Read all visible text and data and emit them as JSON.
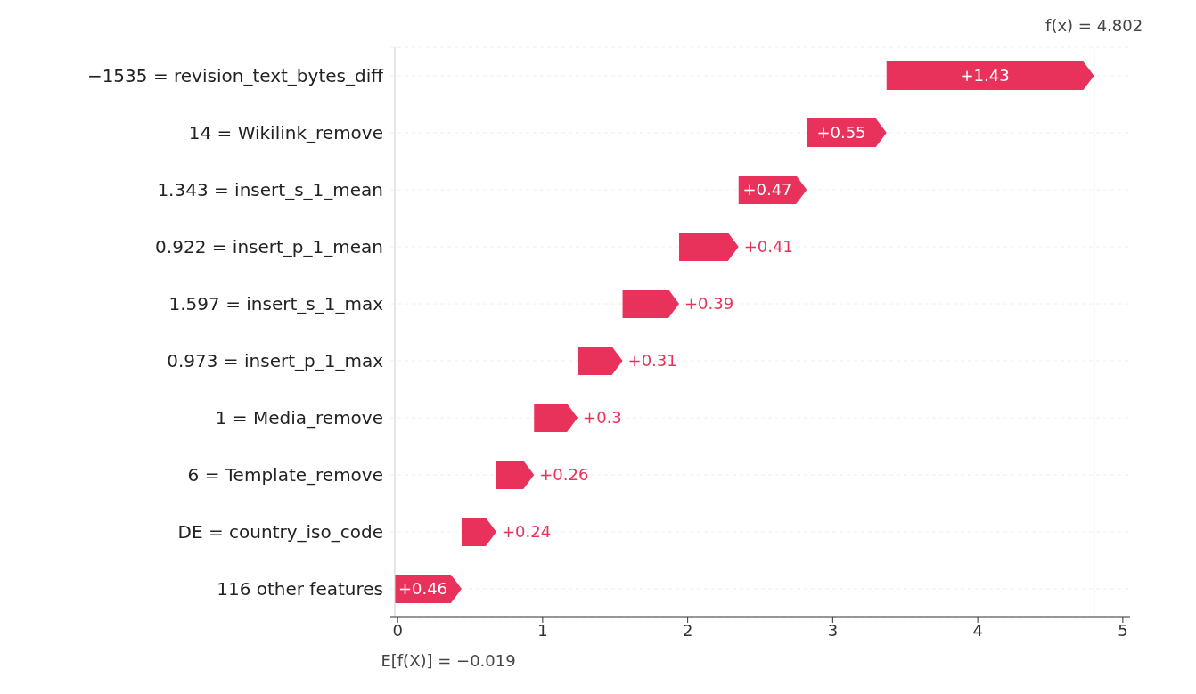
{
  "chart_data": {
    "type": "bar",
    "orientation": "horizontal",
    "categories": [
      "−1535 = revision_text_bytes_diff",
      "14 = Wikilink_remove",
      "1.343 = insert_s_1_mean",
      "0.922 = insert_p_1_mean",
      "1.597 = insert_s_1_max",
      "0.973 = insert_p_1_max",
      "1 = Media_remove",
      "6 = Template_remove",
      "DE = country_iso_code",
      "116 other features"
    ],
    "values": [
      1.43,
      0.55,
      0.47,
      0.41,
      0.39,
      0.31,
      0.3,
      0.26,
      0.24,
      0.46
    ],
    "base": [
      3.371,
      2.821,
      2.351,
      1.941,
      1.551,
      1.241,
      0.941,
      0.681,
      0.441,
      -0.019
    ],
    "value_labels": [
      "+1.43",
      "+0.55",
      "+0.47",
      "+0.41",
      "+0.39",
      "+0.31",
      "+0.3",
      "+0.26",
      "+0.24",
      "+0.46"
    ],
    "color": "#e8315b",
    "xlim": [
      -0.05,
      5.05
    ],
    "xticks": [
      0,
      1,
      2,
      3,
      4,
      5
    ],
    "grid": "y",
    "ref_lines": [
      {
        "axis": "x",
        "value": 4.802,
        "label": "f(x) = 4.802",
        "color": "#cccccc"
      },
      {
        "axis": "x",
        "value": -0.019,
        "label": "E[f(X)] = −0.019",
        "color": "#cccccc"
      }
    ]
  }
}
